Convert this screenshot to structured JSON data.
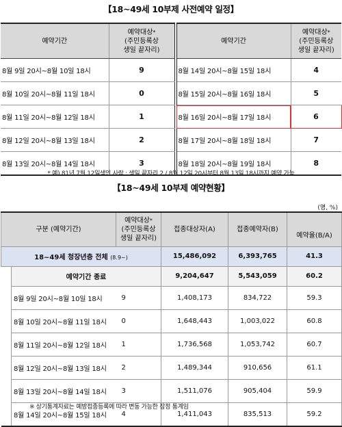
{
  "schedule": {
    "title": "【18~49세 10부제 사전예약 일정】",
    "headers": {
      "period": "예약기간",
      "target": "예약대상",
      "target_sub1": "(주민등록상",
      "target_sub2": "생일 끝자리)",
      "star": "*"
    },
    "left_rows": [
      {
        "period": "8월   9일 20시~8월 10일 18시",
        "digit": "9"
      },
      {
        "period": "8월 10일 20시~8월 11일 18시",
        "digit": "0"
      },
      {
        "period": "8월 11일 20시~8월 12일 18시",
        "digit": "1"
      },
      {
        "period": "8월 12일 20시~8월 13일 18시",
        "digit": "2"
      },
      {
        "period": "8월 13일 20시~8월 14일 18시",
        "digit": "3"
      }
    ],
    "right_rows": [
      {
        "period": "8월 14일 20시~8월 15일 18시",
        "digit": "4"
      },
      {
        "period": "8월 15일 20시~8월 16일 18시",
        "digit": "5"
      },
      {
        "period": "8월 16일 20시~8월 17일 18시",
        "digit": "6"
      },
      {
        "period": "8월 17일 20시~8월 18일 18시",
        "digit": "7"
      },
      {
        "period": "8월 18일 20시~8월 19일 18시",
        "digit": "8"
      }
    ],
    "note": "* 예) 81년 7월 12일생인 사람 : 생일 끝자리 2 / 8월 12일 20시부터 8월 13일 18시까지 예약 가능"
  },
  "status": {
    "title": "【18~49세 10부제 예약현황】",
    "unit": "(명, %)",
    "headers": {
      "division": "구분 (예약기간)",
      "target": "예약대상",
      "target_sub1": "(주민등록상",
      "target_sub2": "생일 끝자리)",
      "star": "*",
      "eligible": "접종대상자(A)",
      "reserved": "접종예약자(B)",
      "rate": "예약율(B/A)"
    },
    "total_row": {
      "label": "18~49세 청장년층 전체",
      "label_small": "(8.9~)",
      "eligible": "15,486,092",
      "reserved": "6,393,765",
      "rate": "41.3"
    },
    "ended_row": {
      "label": "예약기간 종료",
      "eligible": "9,204,647",
      "reserved": "5,543,059",
      "rate": "60.2"
    },
    "rows": [
      {
        "period": "8월   9일 20시~8월 10일 18시",
        "digit": "9",
        "eligible": "1,408,173",
        "reserved": "834,722",
        "rate": "59.3"
      },
      {
        "period": "8월 10일 20시~8월 11일 18시",
        "digit": "0",
        "eligible": "1,648,443",
        "reserved": "1,003,022",
        "rate": "60.8"
      },
      {
        "period": "8월 11일 20시~8월 12일 18시",
        "digit": "1",
        "eligible": "1,736,568",
        "reserved": "1,053,742",
        "rate": "60.7"
      },
      {
        "period": "8월 12일 20시~8월 13일 18시",
        "digit": "2",
        "eligible": "1,489,344",
        "reserved": "910,656",
        "rate": "61.1"
      },
      {
        "period": "8월 13일 20시~8월 14일 18시",
        "digit": "3",
        "eligible": "1,511,076",
        "reserved": "905,404",
        "rate": "59.9"
      },
      {
        "period": "8월 14일 20시~8월 15일 18시",
        "digit": "4",
        "eligible": "1,411,043",
        "reserved": "835,513",
        "rate": "59.2"
      }
    ],
    "note": "※ 상기통계자료는 예방접종등록에 따라 변동 가능한 잠정 통계임"
  },
  "colors": {
    "header_bg": "#d9d9d9",
    "total_bg": "#dbe3f3",
    "highlight": "#e03030"
  }
}
